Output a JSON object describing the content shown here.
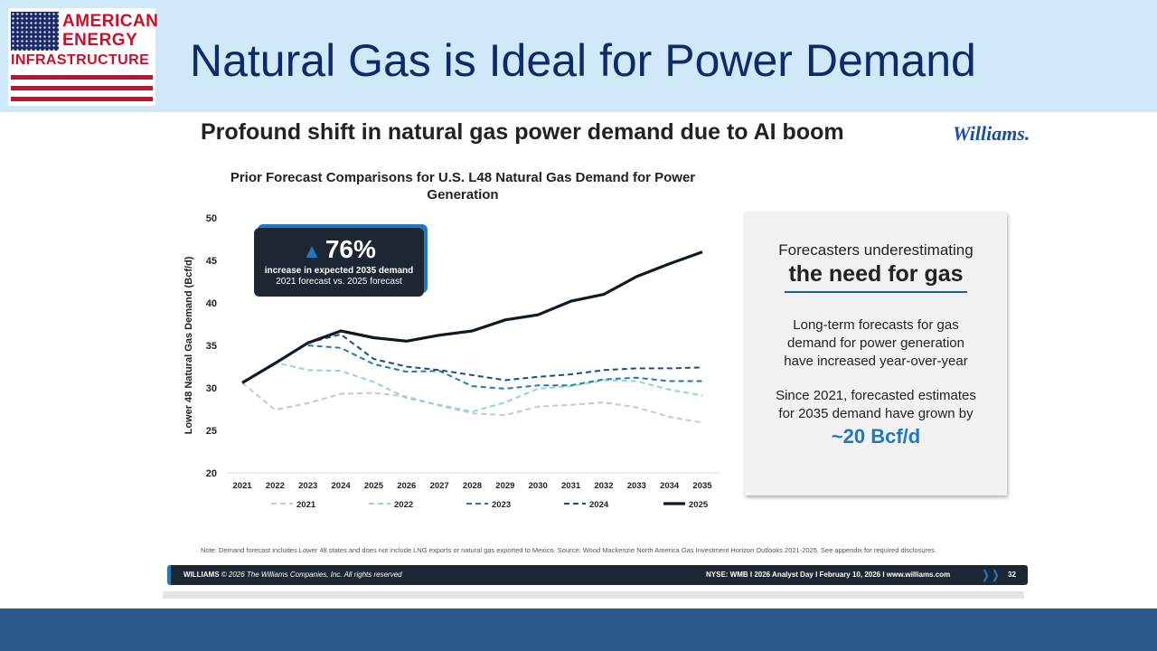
{
  "slide": {
    "title": "Natural Gas is Ideal for Power Demand",
    "logo": {
      "line1": "AMERICAN",
      "line2": "ENERGY",
      "line3": "INFRASTRUCTURE"
    }
  },
  "header": {
    "subtitle": "Profound shift in natural gas power demand due to AI boom",
    "brand": "Williams."
  },
  "callout": {
    "icon": "triangle-up-icon",
    "value": "76%",
    "line2": "increase in expected 2035 demand",
    "line3": "2021 forecast vs. 2025 forecast"
  },
  "sidebox": {
    "heading1": "Forecasters underestimating",
    "heading2": "the need for gas",
    "para1": "Long-term forecasts for gas demand for power generation have increased year-over-year",
    "para2": "Since 2021, forecasted estimates for 2035 demand have grown by",
    "highlight": "~20 Bcf/d"
  },
  "note": "Note: Demand forecast includes Lower 48 states and does not include LNG exports or natural gas exported to Mexico. Source: Wood Mackenzie North America Gas Investment Horizon Outlooks 2021-2025. See appendix for required disclosures.",
  "footer": {
    "company": "WILLIAMS",
    "copyright": " © 2026 The Williams Companies, Inc. All rights reserved",
    "right": "NYSE: WMB  I  2026 Analyst Day  I  February 10, 2026  I  www.williams.com",
    "page": "32"
  },
  "colors": {
    "s2021": "#c8c8c8",
    "s2022": "#8fd0ee",
    "s2023": "#2478b4",
    "s2024": "#1d4f7e",
    "s2025": "#111a24",
    "accent": "#1f78c1"
  },
  "chart_data": {
    "type": "line",
    "title": "Prior Forecast Comparisons for U.S. L48 Natural Gas Demand for Power Generation",
    "xlabel": "",
    "ylabel": "Lower 48 Natural Gas Demand (Bcf/d)",
    "ylim": [
      20,
      50
    ],
    "yticks": [
      20,
      25,
      30,
      35,
      40,
      45,
      50
    ],
    "x": [
      "2021",
      "2022",
      "2023",
      "2024",
      "2025",
      "2026",
      "2027",
      "2028",
      "2029",
      "2030",
      "2031",
      "2032",
      "2033",
      "2034",
      "2035"
    ],
    "grid": false,
    "legend": "bottom",
    "series": [
      {
        "name": "2021",
        "style": "dashed",
        "color": "#c8c8c8",
        "values": [
          30.6,
          27.4,
          28.2,
          29.3,
          29.4,
          29.0,
          27.9,
          27.0,
          26.8,
          27.8,
          28.0,
          28.3,
          27.7,
          26.6,
          25.9
        ]
      },
      {
        "name": "2022",
        "style": "dashed",
        "color": "#8fd0ee",
        "values": [
          30.6,
          33.0,
          32.1,
          32.0,
          30.7,
          28.8,
          28.0,
          27.2,
          28.3,
          29.9,
          30.2,
          30.9,
          30.8,
          29.8,
          29.1
        ]
      },
      {
        "name": "2023",
        "style": "dashed",
        "color": "#2478b4",
        "values": [
          null,
          null,
          35.0,
          34.7,
          32.8,
          31.9,
          32.0,
          30.2,
          29.9,
          30.3,
          30.3,
          31.0,
          31.2,
          30.8,
          30.8
        ]
      },
      {
        "name": "2024",
        "style": "dashed",
        "color": "#1d4f7e",
        "values": [
          null,
          null,
          35.3,
          36.3,
          33.4,
          32.5,
          32.1,
          31.5,
          30.9,
          31.3,
          31.6,
          32.1,
          32.3,
          32.3,
          32.4
        ]
      },
      {
        "name": "2025",
        "style": "solid",
        "color": "#111a24",
        "values": [
          30.6,
          32.9,
          35.3,
          36.7,
          35.9,
          35.5,
          36.2,
          36.7,
          38.0,
          38.6,
          40.2,
          41.0,
          43.1,
          44.6,
          46.0
        ]
      }
    ]
  }
}
